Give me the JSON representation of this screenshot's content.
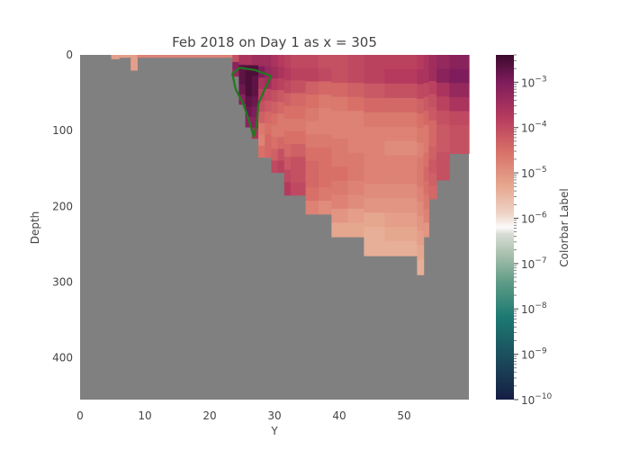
{
  "chart_data": {
    "type": "heatmap",
    "title": "Feb 2018 on Day 1 as x = 305",
    "xlabel": "Y",
    "ylabel": "Depth",
    "xlim": [
      0,
      60
    ],
    "ylim": [
      455,
      0
    ],
    "x_ticks": [
      "0",
      "10",
      "20",
      "30",
      "40",
      "50"
    ],
    "y_ticks": [
      "0",
      "100",
      "200",
      "300",
      "400"
    ],
    "x_tick_values": [
      0,
      10,
      20,
      30,
      40,
      50
    ],
    "y_tick_values": [
      0,
      100,
      200,
      300,
      400
    ],
    "land_color": "#808080",
    "colorscale": "amp-tempo (log)",
    "colorbar": {
      "label": "Colorbar Label",
      "scale": "log",
      "range": [
        1e-10,
        0.004
      ],
      "ticks": [
        "10−10",
        "10−9",
        "10−8",
        "10−7",
        "10−6",
        "10−5",
        "10−4",
        "10−3"
      ],
      "tick_exponents": [
        -10,
        -9,
        -8,
        -7,
        -6,
        -5,
        -4,
        -3
      ]
    },
    "contour": {
      "color": "#1e7a1e",
      "description_points": [
        [
          23.5,
          25
        ],
        [
          24.6,
          17
        ],
        [
          27,
          20
        ],
        [
          29.5,
          28
        ],
        [
          28.5,
          45
        ],
        [
          27.5,
          65
        ],
        [
          27.3,
          90
        ],
        [
          26.8,
          108
        ],
        [
          26,
          85
        ],
        [
          25.2,
          65
        ],
        [
          24,
          45
        ]
      ]
    },
    "columns": [
      {
        "x0": 4.8,
        "x1": 6,
        "depth": 5,
        "exps": [
          -4.9
        ]
      },
      {
        "x0": 6,
        "x1": 7.8,
        "depth": 3,
        "exps": [
          -4.9
        ]
      },
      {
        "x0": 7.8,
        "x1": 8.8,
        "depth": 20,
        "exps": [
          -4.9,
          -4.9
        ]
      },
      {
        "x0": 8.8,
        "x1": 23.5,
        "depth": 3,
        "exps": [
          -4.6
        ]
      },
      {
        "x0": 23.5,
        "x1": 24.5,
        "depth": 28,
        "exps": [
          -4.0,
          -3.3,
          -3.4
        ]
      },
      {
        "x0": 24.5,
        "x1": 25.5,
        "depth": 65,
        "exps": [
          -3.6,
          -3.0,
          -3.0,
          -3.1,
          -3.3
        ]
      },
      {
        "x0": 25.5,
        "x1": 26.5,
        "depth": 95,
        "exps": [
          -3.6,
          -2.9,
          -2.9,
          -2.9,
          -3.0,
          -3.1,
          -3.3
        ]
      },
      {
        "x0": 26.5,
        "x1": 27.5,
        "depth": 110,
        "exps": [
          -3.5,
          -2.9,
          -3.0,
          -3.0,
          -3.1,
          -3.2,
          -3.3,
          -3.6
        ]
      },
      {
        "x0": 27.5,
        "x1": 28.5,
        "depth": 135,
        "exps": [
          -3.5,
          -3.2,
          -3.6,
          -3.8,
          -4.0,
          -4.2,
          -4.5,
          -4.6,
          -4.4
        ]
      },
      {
        "x0": 28.5,
        "x1": 29.5,
        "depth": 135,
        "exps": [
          -3.5,
          -3.4,
          -3.5,
          -3.9,
          -4.1,
          -4.3,
          -4.4,
          -4.3,
          -4.3
        ]
      },
      {
        "x0": 29.5,
        "x1": 30.5,
        "depth": 155,
        "exps": [
          -3.6,
          -3.5,
          -3.7,
          -4.0,
          -4.2,
          -4.4,
          -4.5,
          -4.4,
          -4.2,
          -3.9
        ]
      },
      {
        "x0": 30.5,
        "x1": 31.5,
        "depth": 155,
        "exps": [
          -3.7,
          -3.6,
          -3.8,
          -4.1,
          -4.3,
          -4.5,
          -4.5,
          -4.3,
          -4.0,
          -3.8
        ]
      },
      {
        "x0": 31.5,
        "x1": 32.5,
        "depth": 185,
        "exps": [
          -3.8,
          -3.7,
          -3.9,
          -4.2,
          -4.4,
          -4.5,
          -4.4,
          -4.3,
          -4.1,
          -3.9,
          -3.7
        ]
      },
      {
        "x0": 32.5,
        "x1": 34.8,
        "depth": 185,
        "exps": [
          -3.9,
          -3.8,
          -4.0,
          -4.3,
          -4.4,
          -4.5,
          -4.4,
          -4.2,
          -4.0,
          -4.0,
          -3.9
        ]
      },
      {
        "x0": 34.8,
        "x1": 36.8,
        "depth": 210,
        "exps": [
          -3.9,
          -3.8,
          -4.2,
          -4.4,
          -4.5,
          -4.6,
          -4.5,
          -4.4,
          -4.3,
          -4.3,
          -4.4,
          -4.6
        ]
      },
      {
        "x0": 36.8,
        "x1": 38.8,
        "depth": 210,
        "exps": [
          -4.0,
          -3.9,
          -4.3,
          -4.5,
          -4.6,
          -4.6,
          -4.5,
          -4.4,
          -4.4,
          -4.4,
          -4.5,
          -4.7
        ]
      },
      {
        "x0": 38.8,
        "x1": 41.3,
        "depth": 240,
        "exps": [
          -4.0,
          -4.0,
          -4.3,
          -4.5,
          -4.6,
          -4.6,
          -4.5,
          -4.5,
          -4.4,
          -4.5,
          -4.6,
          -4.8,
          -5.0
        ]
      },
      {
        "x0": 41.3,
        "x1": 43.8,
        "depth": 240,
        "exps": [
          -3.9,
          -3.9,
          -4.2,
          -4.4,
          -4.6,
          -4.6,
          -4.6,
          -4.5,
          -4.5,
          -4.6,
          -4.7,
          -4.9,
          -5.0
        ]
      },
      {
        "x0": 43.8,
        "x1": 47.0,
        "depth": 265,
        "exps": [
          -3.8,
          -3.8,
          -4.1,
          -4.3,
          -4.5,
          -4.6,
          -4.6,
          -4.6,
          -4.6,
          -4.7,
          -4.8,
          -5.0,
          -5.1,
          -5.1
        ]
      },
      {
        "x0": 47.0,
        "x1": 52.0,
        "depth": 265,
        "exps": [
          -3.8,
          -3.7,
          -4.0,
          -4.3,
          -4.5,
          -4.6,
          -4.7,
          -4.6,
          -4.6,
          -4.7,
          -4.8,
          -4.9,
          -5.0,
          -5.1
        ]
      },
      {
        "x0": 52.0,
        "x1": 53.0,
        "depth": 290,
        "exps": [
          -3.7,
          -3.6,
          -3.9,
          -4.2,
          -4.4,
          -4.5,
          -4.6,
          -4.5,
          -4.5,
          -4.6,
          -4.7,
          -4.8,
          -4.9,
          -5.0,
          -5.1
        ]
      },
      {
        "x0": 53.0,
        "x1": 53.8,
        "depth": 240,
        "exps": [
          -3.6,
          -3.6,
          -3.9,
          -4.1,
          -4.3,
          -4.5,
          -4.5,
          -4.4,
          -4.3,
          -4.4,
          -4.5,
          -4.6,
          -4.8
        ]
      },
      {
        "x0": 53.8,
        "x1": 55.0,
        "depth": 190,
        "exps": [
          -3.5,
          -3.5,
          -3.8,
          -4.0,
          -4.1,
          -4.3,
          -4.3,
          -4.2,
          -4.1,
          -4.2,
          -4.3
        ]
      },
      {
        "x0": 55.0,
        "x1": 57.0,
        "depth": 165,
        "exps": [
          -3.4,
          -3.3,
          -3.6,
          -3.8,
          -4.0,
          -4.1,
          -4.1,
          -4.0,
          -4.0
        ]
      },
      {
        "x0": 57.0,
        "x1": 60.0,
        "depth": 130,
        "exps": [
          -3.3,
          -3.2,
          -3.4,
          -3.6,
          -3.9,
          -4.0,
          -4.0
        ]
      }
    ]
  }
}
